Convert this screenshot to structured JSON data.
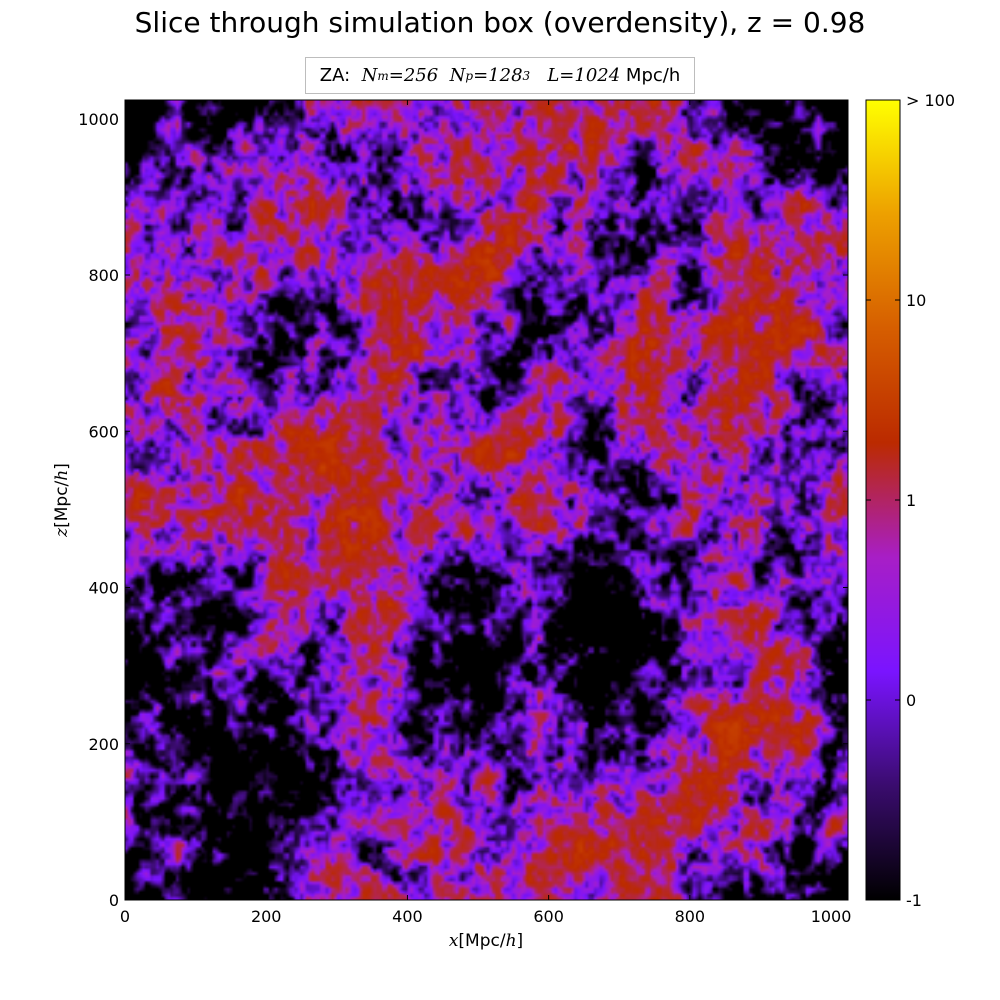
{
  "title": "Slice through simulation box (overdensity), z = 0.98",
  "subtitle": {
    "prefix": "ZA:",
    "nm_label": "N",
    "nm_sub": "m",
    "nm_value": "=256",
    "np_label": "N",
    "np_sub": "p",
    "np_value": "=128",
    "np_exp": "3",
    "l_label": "L",
    "l_value": "=1024",
    "unit": "Mpc/h"
  },
  "chart_data": {
    "type": "heatmap",
    "title": "Slice through simulation box (overdensity), z = 0.98",
    "xlabel": "x[Mpc/h]",
    "ylabel": "z[Mpc/h]",
    "xlim": [
      0,
      1024
    ],
    "ylim": [
      0,
      1024
    ],
    "x_ticks": [
      "0",
      "200",
      "400",
      "600",
      "800",
      "1000"
    ],
    "y_ticks": [
      "0",
      "200",
      "400",
      "600",
      "800",
      "1000"
    ],
    "colorbar": {
      "scale": "symlog",
      "range": [
        -1,
        100
      ],
      "tick_labels": [
        "-1",
        "0",
        "1",
        "10",
        "> 100"
      ],
      "tick_values": [
        -1,
        0,
        1,
        10,
        100
      ],
      "colormap": "gnuplot2",
      "colors": [
        "#000000",
        "#3a0c6e",
        "#7a14ff",
        "#a81ec6",
        "#bb2a00",
        "#d65e00",
        "#eda000",
        "#ffff00"
      ]
    },
    "grid_resolution": 256
  }
}
